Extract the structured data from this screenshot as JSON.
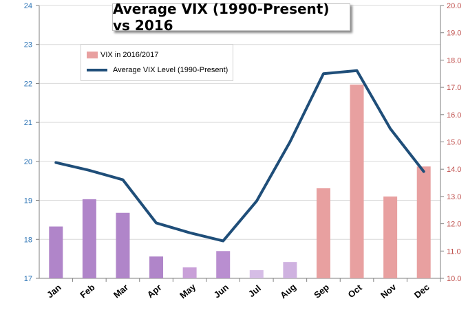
{
  "chart_data": {
    "type": "bar+line",
    "title": "Average VIX (1990-Present) vs 2016",
    "categories": [
      "Jan",
      "Feb",
      "Mar",
      "Apr",
      "May",
      "Jun",
      "Jul",
      "Aug",
      "Sep",
      "Oct",
      "Nov",
      "Dec"
    ],
    "left_axis": {
      "min": 17,
      "max": 24,
      "ticks": [
        "17",
        "18",
        "19",
        "20",
        "21",
        "22",
        "23",
        "24"
      ],
      "color": "#2e75b6"
    },
    "right_axis": {
      "min": 10,
      "max": 20,
      "ticks": [
        "10.0",
        "11.0",
        "12.0",
        "13.0",
        "14.0",
        "15.0",
        "16.0",
        "17.0",
        "18.0",
        "19.0",
        "20.0"
      ],
      "color": "#c0504d"
    },
    "series": [
      {
        "name": "VIX in 2016/2017",
        "kind": "bar",
        "axis": "right",
        "values": [
          11.9,
          12.9,
          12.4,
          10.8,
          10.4,
          11.0,
          10.3,
          10.6,
          13.3,
          17.1,
          13.0,
          14.1
        ],
        "colors": [
          "#b085c9",
          "#b085c9",
          "#b085c9",
          "#b085c9",
          "#c9a0d8",
          "#b98ed0",
          "#d6bde6",
          "#cfb2e0",
          "#e8a0a0",
          "#e8a0a0",
          "#e8a0a0",
          "#e8a0a0"
        ]
      },
      {
        "name": "Average VIX Level (1990-Present)",
        "kind": "line",
        "axis": "left",
        "color": "#1f4e79",
        "values": [
          19.97,
          19.77,
          19.53,
          18.42,
          18.17,
          17.96,
          18.98,
          20.5,
          22.25,
          22.33,
          20.84,
          19.74
        ]
      }
    ],
    "grid": true,
    "legend_position": "top-left"
  }
}
